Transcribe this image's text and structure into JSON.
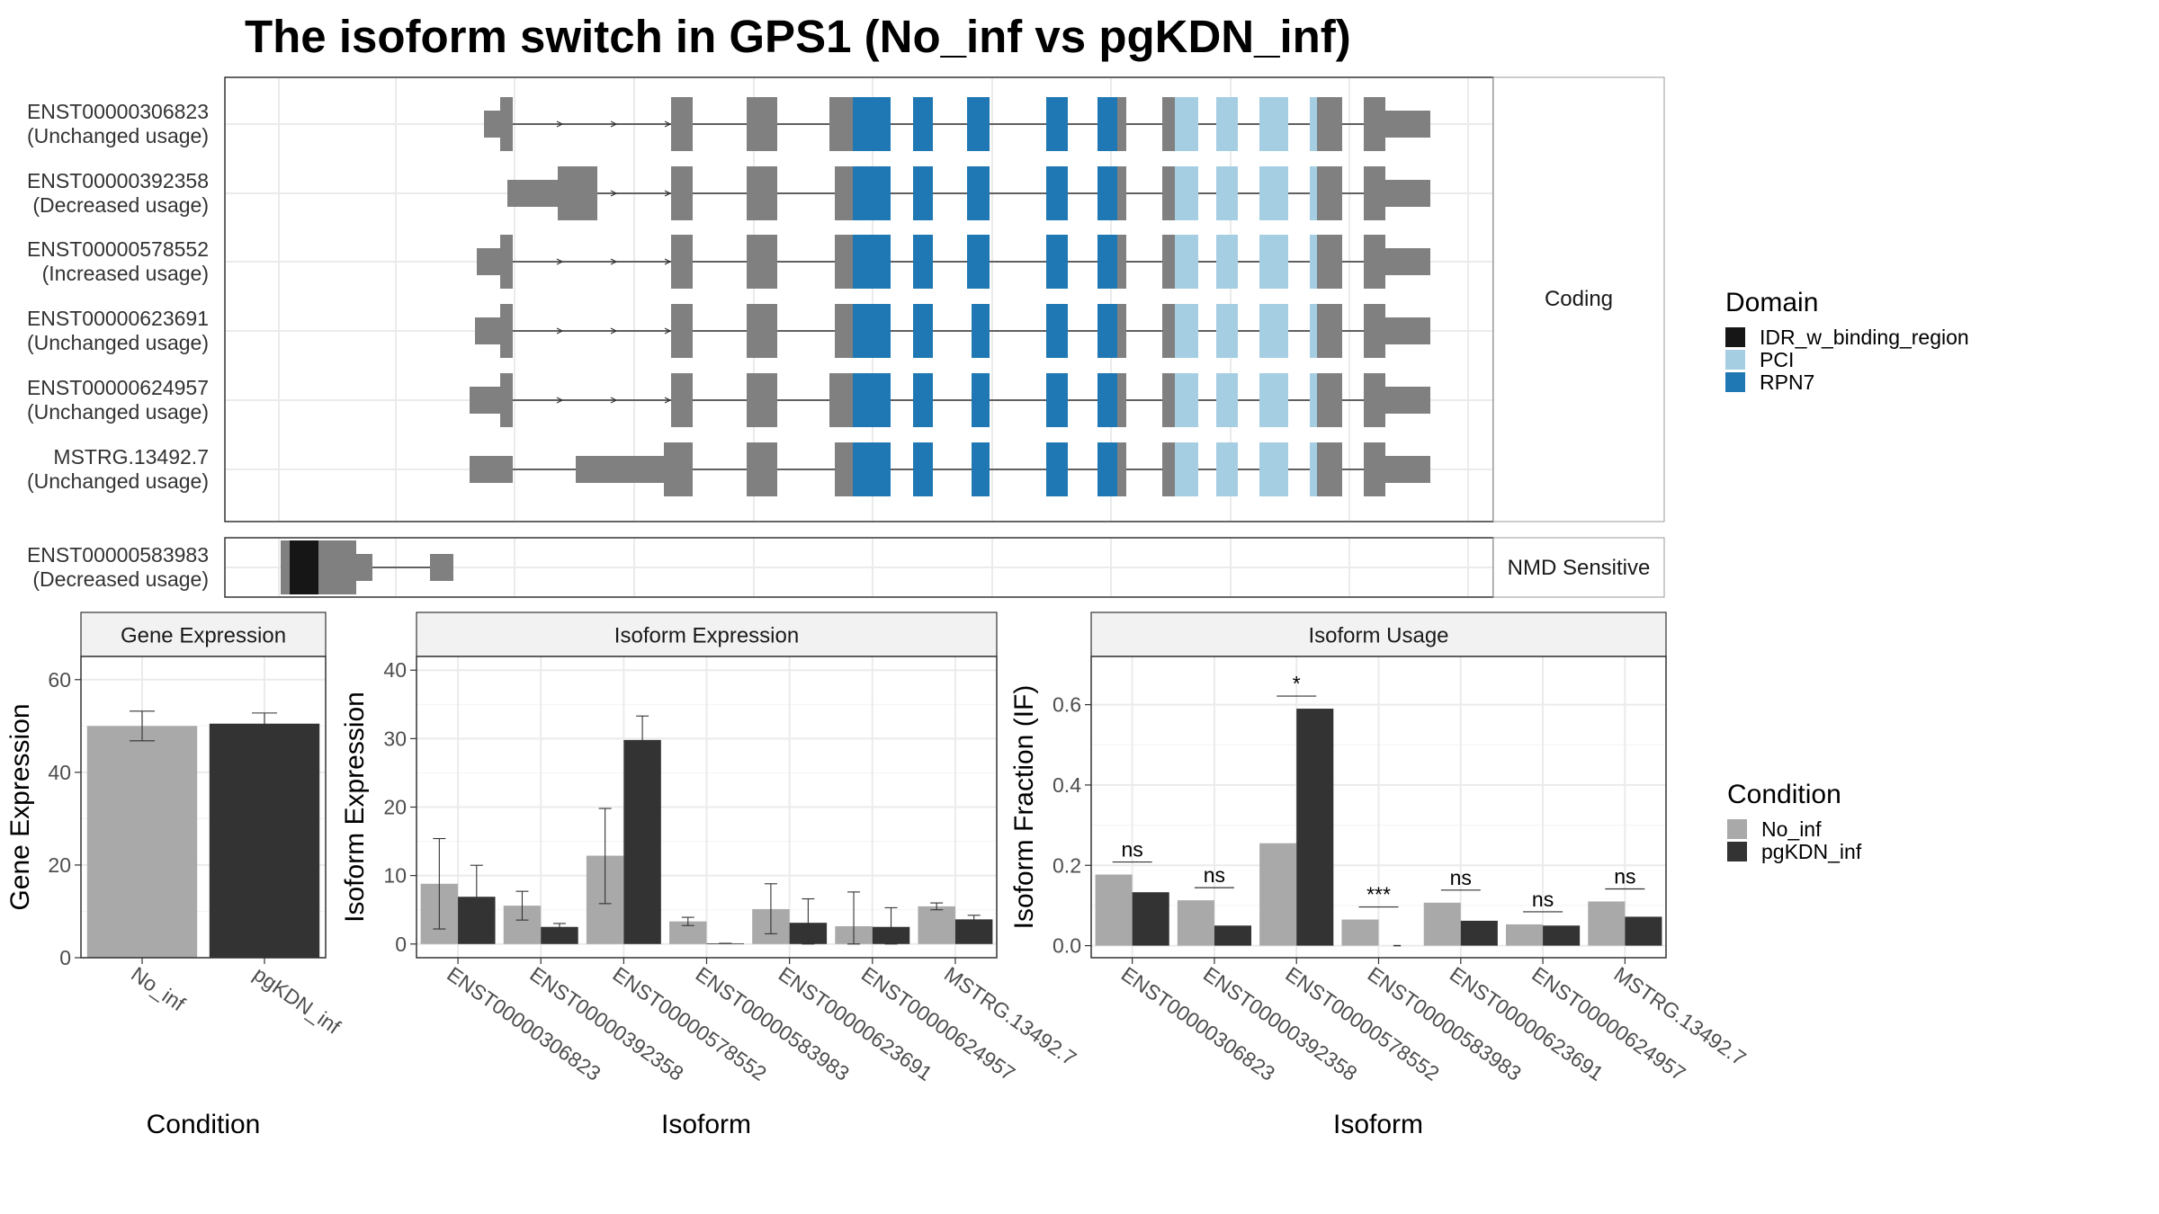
{
  "title": "The isoform switch in GPS1 (No_inf vs pgKDN_inf)",
  "colors": {
    "exon": "#808080",
    "IDR_w_binding_region": "#161616",
    "PCI": "#A6CEE3",
    "RPN7": "#1F78B4",
    "No_inf": "#A9A9A9",
    "pgKDN_inf": "#333333",
    "grid": "#EBEBEB",
    "panel_border": "#333333",
    "strip_fill": "#F2F2F2"
  },
  "structure": {
    "facet_labels": {
      "coding": "Coding",
      "nmd": "NMD Sensitive"
    },
    "coding_isoforms": [
      {
        "id": "ENST00000306823",
        "usage": "(Unchanged usage)"
      },
      {
        "id": "ENST00000392358",
        "usage": "(Decreased usage)"
      },
      {
        "id": "ENST00000578552",
        "usage": "(Increased usage)"
      },
      {
        "id": "ENST00000623691",
        "usage": "(Unchanged usage)"
      },
      {
        "id": "ENST00000624957",
        "usage": "(Unchanged usage)"
      },
      {
        "id": "MSTRG.13492.7",
        "usage": "(Unchanged usage)"
      }
    ],
    "nmd_isoforms": [
      {
        "id": "ENST00000583983",
        "usage": "(Decreased usage)"
      }
    ]
  },
  "domain_legend": {
    "title": "Domain",
    "items": [
      {
        "label": "IDR_w_binding_region",
        "color": "#161616"
      },
      {
        "label": "PCI",
        "color": "#A6CEE3"
      },
      {
        "label": "RPN7",
        "color": "#1F78B4"
      }
    ]
  },
  "condition_legend": {
    "title": "Condition",
    "items": [
      {
        "label": "No_inf",
        "color": "#A9A9A9"
      },
      {
        "label": "pgKDN_inf",
        "color": "#333333"
      }
    ]
  },
  "chart_data": [
    {
      "type": "bar",
      "title": "Gene Expression",
      "xlabel": "Condition",
      "ylabel": "Gene Expression",
      "categories": [
        "No_inf",
        "pgKDN_inf"
      ],
      "values": [
        50,
        50.5
      ],
      "errors": [
        [
          46.8,
          53.2
        ],
        [
          48.1,
          52.8
        ]
      ],
      "ylim": [
        0,
        65
      ],
      "yticks": [
        0,
        20,
        40,
        60
      ]
    },
    {
      "type": "bar",
      "title": "Isoform Expression",
      "xlabel": "Isoform",
      "ylabel": "Isoform Expression",
      "categories": [
        "ENST00000306823",
        "ENST00000392358",
        "ENST00000578552",
        "ENST00000583983",
        "ENST00000623691",
        "ENST00000624957",
        "MSTRG.13492.7"
      ],
      "series": [
        {
          "name": "No_inf",
          "values": [
            8.8,
            5.6,
            12.9,
            3.3,
            5.1,
            2.6,
            5.5
          ],
          "errors": [
            [
              2.2,
              15.4
            ],
            [
              3.5,
              7.7
            ],
            [
              5.9,
              19.8
            ],
            [
              2.7,
              3.9
            ],
            [
              1.5,
              8.8
            ],
            [
              0,
              7.6
            ],
            [
              5.0,
              6.0
            ]
          ]
        },
        {
          "name": "pgKDN_inf",
          "values": [
            6.9,
            2.5,
            29.8,
            0.1,
            3.1,
            2.5,
            3.6
          ],
          "errors": [
            [
              2.3,
              11.5
            ],
            [
              2.0,
              3.0
            ],
            [
              26.2,
              33.3
            ],
            [
              0.1,
              0.1
            ],
            [
              0,
              6.6
            ],
            [
              0,
              5.3
            ],
            [
              3.0,
              4.2
            ]
          ]
        }
      ],
      "ylim": [
        -2,
        42
      ],
      "yticks": [
        0,
        10,
        20,
        30,
        40
      ]
    },
    {
      "type": "bar",
      "title": "Isoform Usage",
      "xlabel": "Isoform",
      "ylabel": "Isoform Fraction (IF)",
      "categories": [
        "ENST00000306823",
        "ENST00000392358",
        "ENST00000578552",
        "ENST00000583983",
        "ENST00000623691",
        "ENST00000624957",
        "MSTRG.13492.7"
      ],
      "series": [
        {
          "name": "No_inf",
          "values": [
            0.177,
            0.113,
            0.255,
            0.065,
            0.107,
            0.053,
            0.11
          ]
        },
        {
          "name": "pgKDN_inf",
          "values": [
            0.133,
            0.05,
            0.59,
            0.0,
            0.062,
            0.05,
            0.072
          ]
        }
      ],
      "significance": [
        "ns",
        "ns",
        "*",
        "***",
        "ns",
        "ns",
        "ns"
      ],
      "ylim": [
        -0.03,
        0.72
      ],
      "yticks": [
        0.0,
        0.2,
        0.4,
        0.6
      ],
      "ytick_labels": [
        "0.0",
        "0.2",
        "0.4",
        "0.6"
      ]
    }
  ]
}
